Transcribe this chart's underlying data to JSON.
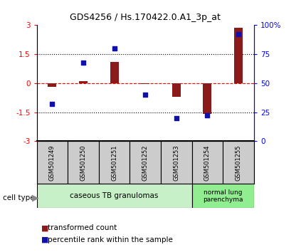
{
  "title": "GDS4256 / Hs.170422.0.A1_3p_at",
  "samples": [
    "GSM501249",
    "GSM501250",
    "GSM501251",
    "GSM501252",
    "GSM501253",
    "GSM501254",
    "GSM501255"
  ],
  "red_values": [
    -0.18,
    0.12,
    1.1,
    -0.05,
    -0.7,
    -1.6,
    2.85
  ],
  "blue_values": [
    32,
    68,
    80,
    40,
    20,
    22,
    92
  ],
  "ylim_left": [
    -3,
    3
  ],
  "ylim_right": [
    0,
    100
  ],
  "yticks_left": [
    -3,
    -1.5,
    0,
    1.5,
    3
  ],
  "yticks_right": [
    0,
    25,
    50,
    75,
    100
  ],
  "ytick_labels_left": [
    "-3",
    "-1.5",
    "0",
    "1.5",
    "3"
  ],
  "ytick_labels_right": [
    "0",
    "25",
    "50",
    "75",
    "100%"
  ],
  "hlines": [
    1.5,
    0.0,
    -1.5
  ],
  "hline_styles": [
    "dotted",
    "dashed",
    "dotted"
  ],
  "hline_colors": [
    "black",
    "red",
    "black"
  ],
  "red_color": "#8B1A1A",
  "blue_color": "#1010AA",
  "bar_width": 0.5,
  "cell_type_label": "cell type",
  "group1_label": "caseous TB granulomas",
  "group2_label": "normal lung\nparenchyma",
  "group1_samples": 5,
  "group2_samples": 2,
  "legend1_label": "transformed count",
  "legend2_label": "percentile rank within the sample",
  "group1_color": "#c8f0c8",
  "group2_color": "#90ee90",
  "xlabel_area_color": "#cccccc",
  "bg_color": "#ffffff"
}
